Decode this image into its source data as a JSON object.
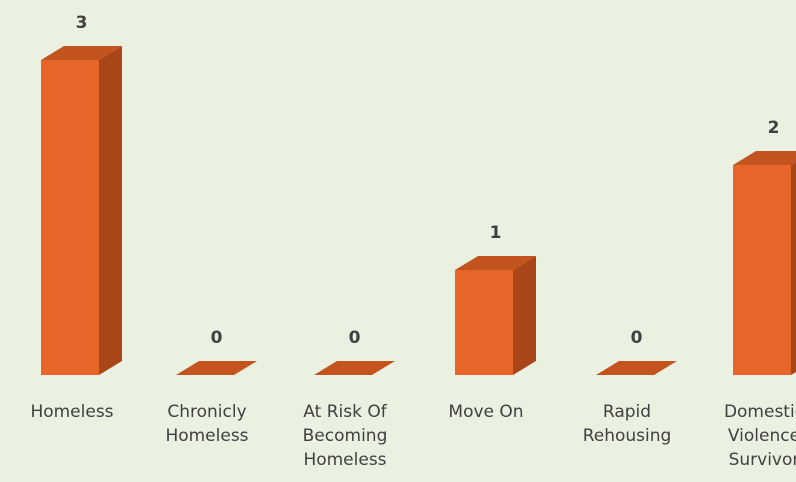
{
  "chart_data": {
    "type": "bar",
    "style": "3d-column",
    "categories": [
      [
        "Homeless"
      ],
      [
        "Chronicly",
        "Homeless"
      ],
      [
        "At Risk Of",
        "Becoming",
        "Homeless"
      ],
      [
        "Move On"
      ],
      [
        "Rapid",
        "Rehousing"
      ],
      [
        "Domestic",
        "Violence",
        "Survivor"
      ]
    ],
    "values": [
      3,
      0,
      0,
      1,
      0,
      2
    ],
    "data_labels": [
      "3",
      "0",
      "0",
      "1",
      "0",
      "2"
    ],
    "ylim": [
      0,
      3
    ],
    "grid": false,
    "colors": {
      "front": "#e8652a",
      "side": "#a84618",
      "top": "#c4541f",
      "background": "#eaf1e1",
      "label": "#404040"
    }
  }
}
